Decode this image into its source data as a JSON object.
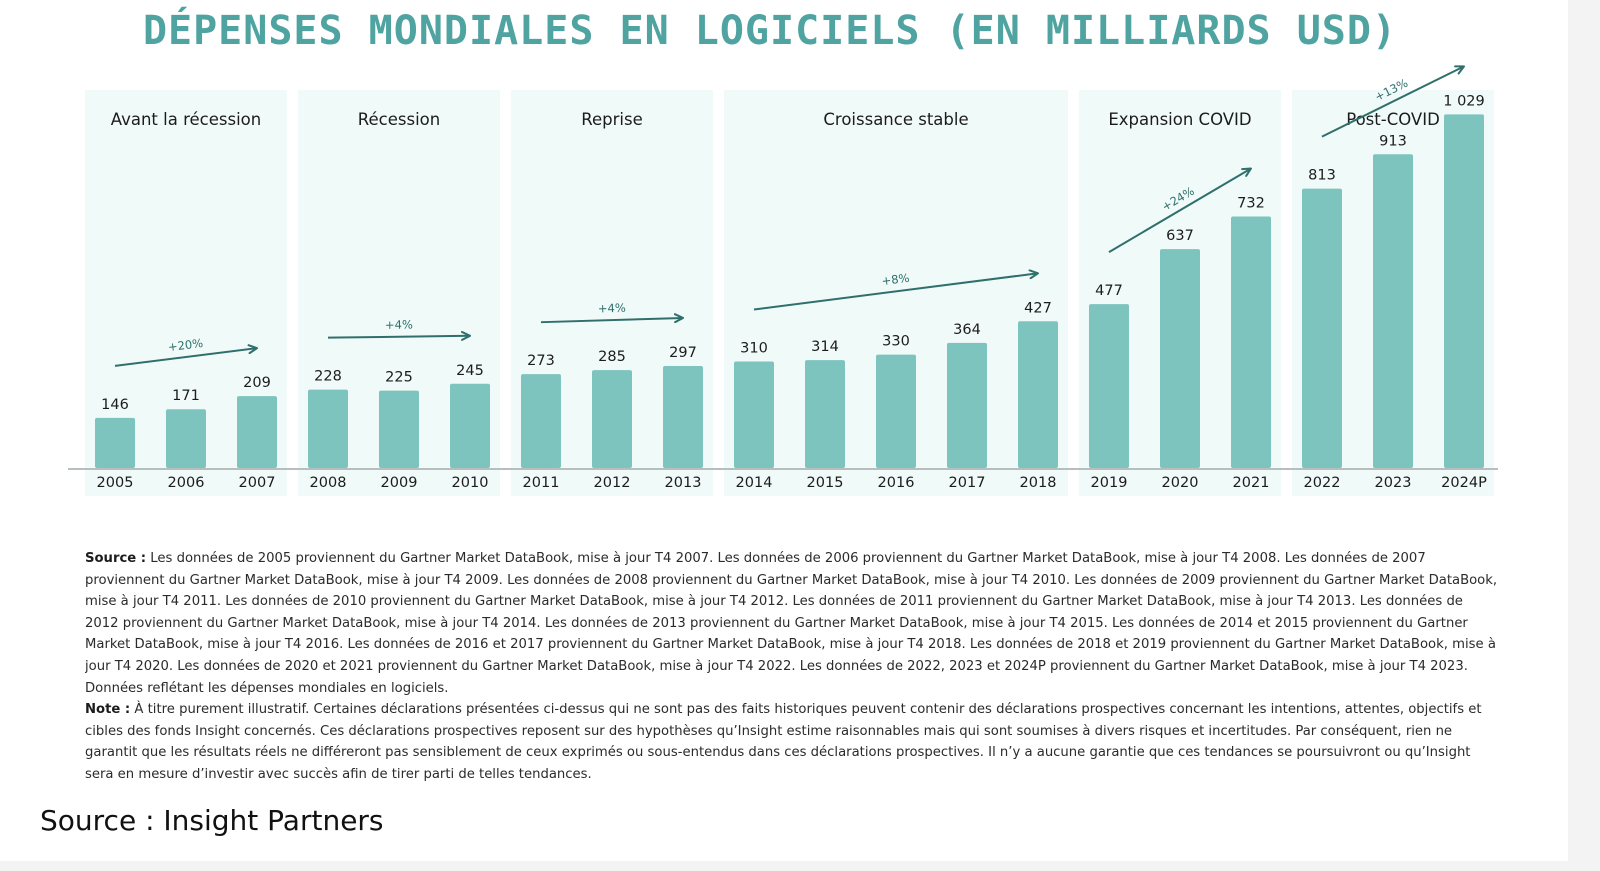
{
  "title": "DÉPENSES MONDIALES EN LOGICIELS (EN MILLIARDS USD)",
  "chart_data": {
    "type": "bar",
    "title": "DÉPENSES MONDIALES EN LOGICIELS (EN MILLIARDS USD)",
    "categories": [
      "2005",
      "2006",
      "2007",
      "2008",
      "2009",
      "2010",
      "2011",
      "2012",
      "2013",
      "2014",
      "2015",
      "2016",
      "2017",
      "2018",
      "2019",
      "2020",
      "2021",
      "2022",
      "2023",
      "2024P"
    ],
    "values": [
      146,
      171,
      209,
      228,
      225,
      245,
      273,
      285,
      297,
      310,
      314,
      330,
      364,
      427,
      477,
      637,
      732,
      813,
      913,
      1029
    ],
    "value_labels": [
      "146",
      "171",
      "209",
      "228",
      "225",
      "245",
      "273",
      "285",
      "297",
      "310",
      "314",
      "330",
      "364",
      "427",
      "477",
      "637",
      "732",
      "813",
      "913",
      "1 029"
    ],
    "ylim": [
      0,
      1100
    ],
    "grid": false,
    "legend": "none",
    "bar_color": "#7cc4bd",
    "phase_bg_color": "#f0faf9",
    "arrow_color": "#2f6f6c",
    "phases": [
      {
        "label": "Avant la récession",
        "start": 0,
        "end": 2,
        "growth": "+20%"
      },
      {
        "label": "Récession",
        "start": 3,
        "end": 5,
        "growth": "+4%"
      },
      {
        "label": "Reprise",
        "start": 6,
        "end": 8,
        "growth": "+4%"
      },
      {
        "label": "Croissance stable",
        "start": 9,
        "end": 13,
        "growth": "+8%"
      },
      {
        "label": "Expansion COVID",
        "start": 14,
        "end": 16,
        "growth": "+24%"
      },
      {
        "label": "Post-COVID",
        "start": 17,
        "end": 19,
        "growth": "+13%"
      }
    ]
  },
  "notes": {
    "source_label": "Source :",
    "source_text": "Les données de 2005 proviennent du Gartner Market DataBook, mise à jour T4 2007. Les données de 2006 proviennent du Gartner Market DataBook, mise à jour T4 2008. Les données de 2007 proviennent du Gartner Market DataBook, mise à jour T4 2009. Les données de 2008 proviennent du Gartner Market DataBook, mise à jour T4 2010. Les données de 2009 proviennent du Gartner Market DataBook, mise à jour T4 2011. Les données de 2010 proviennent du Gartner Market DataBook, mise à jour T4 2012. Les données de 2011 proviennent du Gartner Market DataBook, mise à jour T4 2013. Les données de 2012 proviennent du Gartner Market DataBook, mise à jour T4 2014. Les données de 2013 proviennent du Gartner Market DataBook, mise à jour T4 2015. Les données de 2014 et 2015 proviennent du Gartner Market DataBook, mise à jour T4 2016. Les données de 2016 et 2017 proviennent du Gartner Market DataBook, mise à jour T4 2018. Les données de 2018 et 2019 proviennent du Gartner Market DataBook, mise à jour T4 2020. Les données de 2020 et 2021 proviennent du Gartner Market DataBook, mise à jour T4 2022. Les données de 2022, 2023 et 2024P proviennent du Gartner Market DataBook, mise à jour T4 2023. Données reflétant les dépenses mondiales en logiciels.",
    "note_label": "Note :",
    "note_text": "À titre purement illustratif. Certaines déclarations présentées ci-dessus qui ne sont pas des faits historiques peuvent contenir des déclarations prospectives concernant les intentions, attentes, objectifs et cibles des fonds Insight concernés. Ces déclarations prospectives reposent sur des hypothèses qu’Insight estime raisonnables mais qui sont soumises à divers risques et incertitudes. Par conséquent, rien ne garantit que les résultats réels ne différeront pas sensiblement de ceux exprimés ou sous-entendus dans ces déclarations prospectives. Il n’y a aucune garantie que ces tendances se poursuivront ou qu’Insight sera en mesure d’investir avec succès afin de tirer parti de telles tendances."
  },
  "footer": {
    "source": "Source : Insight Partners"
  }
}
